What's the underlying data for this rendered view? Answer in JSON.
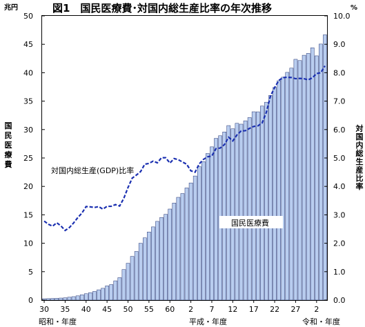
{
  "chart_data": {
    "type": "bar",
    "title": "図1　国民医療費･対国内総生産比率の年次推移",
    "y_left": {
      "unit": "兆円",
      "label": "国民医療費",
      "ticks": [
        "0",
        "5",
        "10",
        "15",
        "20",
        "25",
        "30",
        "35",
        "40",
        "45",
        "50"
      ],
      "ylim": [
        0,
        50
      ]
    },
    "y_right": {
      "unit": "%",
      "label": "対国内総生産比率",
      "ticks": [
        "0.0",
        "1.0",
        "2.0",
        "3.0",
        "4.0",
        "5.0",
        "6.0",
        "7.0",
        "8.0",
        "9.0",
        "10.0"
      ],
      "ylim": [
        0,
        10
      ]
    },
    "x_tick_labels": [
      "30",
      "35",
      "40",
      "45",
      "50",
      "55",
      "60",
      "2",
      "7",
      "12",
      "17",
      "22",
      "27",
      "2"
    ],
    "era_labels": [
      "昭和・年度",
      "平成・年度",
      "令和・年度"
    ],
    "categories": [
      "S30",
      "S31",
      "S32",
      "S33",
      "S34",
      "S35",
      "S36",
      "S37",
      "S38",
      "S39",
      "S40",
      "S41",
      "S42",
      "S43",
      "S44",
      "S45",
      "S46",
      "S47",
      "S48",
      "S49",
      "S50",
      "S51",
      "S52",
      "S53",
      "S54",
      "S55",
      "S56",
      "S57",
      "S58",
      "S59",
      "S60",
      "S61",
      "S62",
      "S63",
      "H1",
      "H2",
      "H3",
      "H4",
      "H5",
      "H6",
      "H7",
      "H8",
      "H9",
      "H10",
      "H11",
      "H12",
      "H13",
      "H14",
      "H15",
      "H16",
      "H17",
      "H18",
      "H19",
      "H20",
      "H21",
      "H22",
      "H23",
      "H24",
      "H25",
      "H26",
      "H27",
      "H28",
      "H29",
      "H30",
      "R1",
      "R2",
      "R3",
      "R4"
    ],
    "series": [
      {
        "name": "国民医療費",
        "type": "bar",
        "axis": "left",
        "color": "#b9cdef",
        "values": [
          0.24,
          0.26,
          0.29,
          0.32,
          0.36,
          0.41,
          0.51,
          0.61,
          0.75,
          0.94,
          1.12,
          1.31,
          1.52,
          1.81,
          2.08,
          2.5,
          2.73,
          3.39,
          3.95,
          5.38,
          6.48,
          7.69,
          8.56,
          10.0,
          10.95,
          11.98,
          12.88,
          13.85,
          14.54,
          15.09,
          16.02,
          17.07,
          18.08,
          18.75,
          19.73,
          20.61,
          21.83,
          23.48,
          24.36,
          25.79,
          26.96,
          28.45,
          28.91,
          29.58,
          30.7,
          30.14,
          31.1,
          30.95,
          31.54,
          32.11,
          33.13,
          33.12,
          34.14,
          34.81,
          36.01,
          37.42,
          38.59,
          39.21,
          40.06,
          40.81,
          42.36,
          42.14,
          43.07,
          43.4,
          44.39,
          42.97,
          45.04,
          46.67
        ]
      },
      {
        "name": "対国内総生産(GDP)比率",
        "type": "line",
        "axis": "right",
        "style": "dashed",
        "color": "#1a2fb0",
        "values": [
          2.78,
          2.67,
          2.6,
          2.72,
          2.61,
          2.45,
          2.55,
          2.71,
          2.9,
          3.06,
          3.29,
          3.28,
          3.26,
          3.29,
          3.2,
          3.3,
          3.3,
          3.36,
          3.31,
          3.58,
          3.96,
          4.29,
          4.4,
          4.52,
          4.78,
          4.81,
          4.89,
          4.83,
          5.01,
          5.01,
          4.82,
          4.98,
          4.94,
          4.86,
          4.78,
          4.55,
          4.5,
          4.79,
          4.95,
          5.04,
          5.07,
          5.33,
          5.35,
          5.47,
          5.73,
          5.6,
          5.81,
          5.95,
          5.96,
          6.04,
          6.11,
          6.13,
          6.23,
          6.6,
          7.18,
          7.48,
          7.73,
          7.83,
          7.84,
          7.83,
          7.79,
          7.8,
          7.79,
          7.75,
          7.82,
          7.97,
          8.0,
          8.24
        ]
      }
    ],
    "annotations": {
      "line_label": "対国内総生産(GDP)比率",
      "bar_label": "国民医療費"
    },
    "grid": false,
    "legend": "none"
  }
}
